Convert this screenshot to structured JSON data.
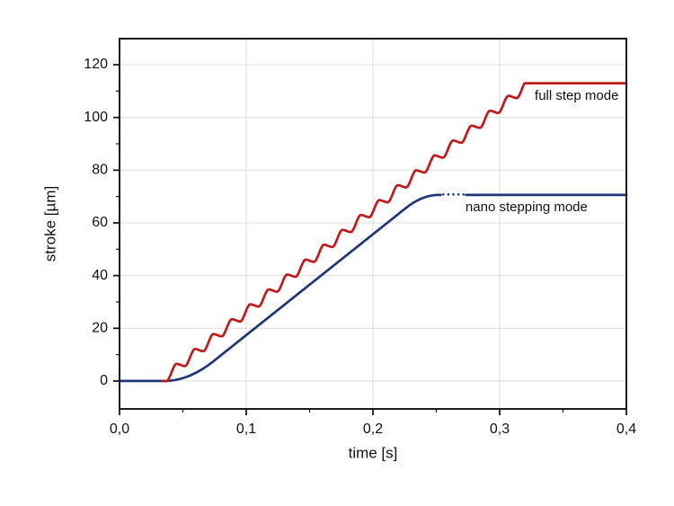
{
  "chart_data": {
    "type": "line",
    "title": "",
    "xlabel": "time [s]",
    "ylabel": "stroke [µm]",
    "xlim": [
      0.0,
      0.4
    ],
    "ylim": [
      -10.6,
      129.9
    ],
    "x_major_ticks": [
      0.0,
      0.1,
      0.2,
      0.3,
      0.4
    ],
    "x_tick_labels": [
      "0,0",
      "0,1",
      "0,2",
      "0,3",
      "0,4"
    ],
    "x_minor_ticks": [
      0.05,
      0.15,
      0.25,
      0.35
    ],
    "y_major_ticks": [
      0,
      20,
      40,
      60,
      80,
      100,
      120
    ],
    "y_tick_labels": [
      "0",
      "20",
      "40",
      "60",
      "80",
      "100",
      "120"
    ],
    "y_minor_ticks": [
      10,
      30,
      50,
      70,
      90,
      110
    ],
    "grid": true,
    "grid_color": "#dcdcdc",
    "frame_color": "#1a1a1a",
    "legend_position": "inline-labels",
    "series": [
      {
        "name": "nano stepping mode",
        "color": "#1f3678",
        "line_width": 2.7,
        "shape": "smooth-ramp",
        "flat_value_before": 0,
        "rise_start": 0.035,
        "rise_end": 0.252,
        "plateau": 70.6,
        "accel_frac": 0.18,
        "decel_frac": 0.12,
        "draw_from": 0.0,
        "gap": {
          "from": 0.2535,
          "to": 0.2735,
          "dots": [
            0.2555,
            0.2595,
            0.2635,
            0.2675,
            0.2715
          ],
          "dot_value": 70.8,
          "dot_r": 1.3
        },
        "key_points": [
          [
            0,
            0
          ],
          [
            0.035,
            0
          ],
          [
            0.252,
            70.6
          ],
          [
            0.4,
            70.6
          ]
        ],
        "label": {
          "text": "nano stepping mode",
          "t": 0.273,
          "value": 65.8
        }
      },
      {
        "name": "full step mode",
        "color": "#c01a1d",
        "line_width": 2.7,
        "shape": "staircase",
        "flat_value_before": 0,
        "rise_start": 0.037,
        "rise_end": 0.328,
        "plateau": 113,
        "steps": 20,
        "overshoot": 0.15,
        "draw_from": 0.034,
        "key_points": [
          [
            0.034,
            0
          ],
          [
            0.037,
            0
          ],
          [
            0.328,
            113
          ],
          [
            0.4,
            113
          ]
        ],
        "label": {
          "text": "full step mode",
          "t": 0.3277,
          "value": 108
        }
      }
    ]
  }
}
